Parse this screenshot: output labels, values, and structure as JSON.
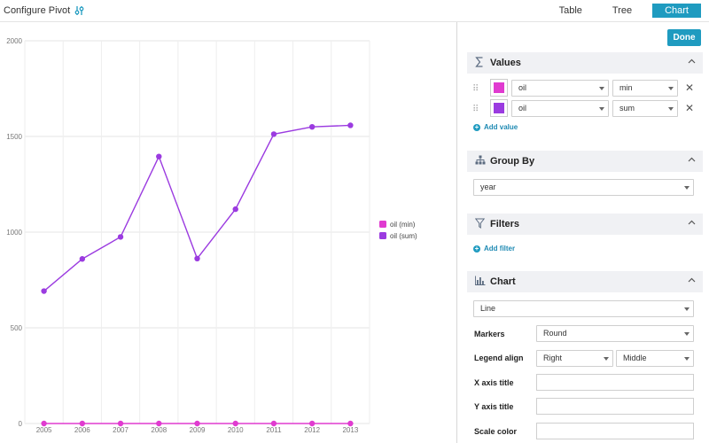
{
  "toolbar": {
    "configure_label": "Configure Pivot",
    "icon": "sliders-icon",
    "tabs": [
      "Table",
      "Tree",
      "Chart"
    ],
    "active_tab": "Chart"
  },
  "panel": {
    "done_label": "Done",
    "values": {
      "title": "Values",
      "rows": [
        {
          "field": "oil",
          "agg": "min",
          "color": "#e03bd0"
        },
        {
          "field": "oil",
          "agg": "sum",
          "color": "#9b3be0"
        }
      ],
      "add_label": "Add value"
    },
    "group_by": {
      "title": "Group By",
      "value": "year"
    },
    "filters": {
      "title": "Filters",
      "add_label": "Add filter"
    },
    "chart": {
      "title": "Chart",
      "type": "Line",
      "markers_label": "Markers",
      "markers_value": "Round",
      "legend_label": "Legend align",
      "legend_h": "Right",
      "legend_v": "Middle",
      "xaxis_label": "X axis title",
      "yaxis_label": "Y axis title",
      "scale_label": "Scale color"
    }
  },
  "chart_data": {
    "type": "line",
    "x": [
      "2005",
      "2006",
      "2007",
      "2008",
      "2009",
      "2010",
      "2011",
      "2012",
      "2013"
    ],
    "ylim": [
      0,
      2000
    ],
    "yticks": [
      0,
      500,
      1000,
      1500,
      2000
    ],
    "grid": true,
    "legend_position": "right-middle",
    "series": [
      {
        "name": "oil (min)",
        "color": "#e03bd0",
        "values": [
          0,
          0,
          0,
          0,
          0,
          0,
          0,
          0,
          0
        ]
      },
      {
        "name": "oil (sum)",
        "color": "#9b3be0",
        "values": [
          692,
          860,
          975,
          1395,
          862,
          1120,
          1512,
          1550,
          1558
        ]
      }
    ]
  }
}
